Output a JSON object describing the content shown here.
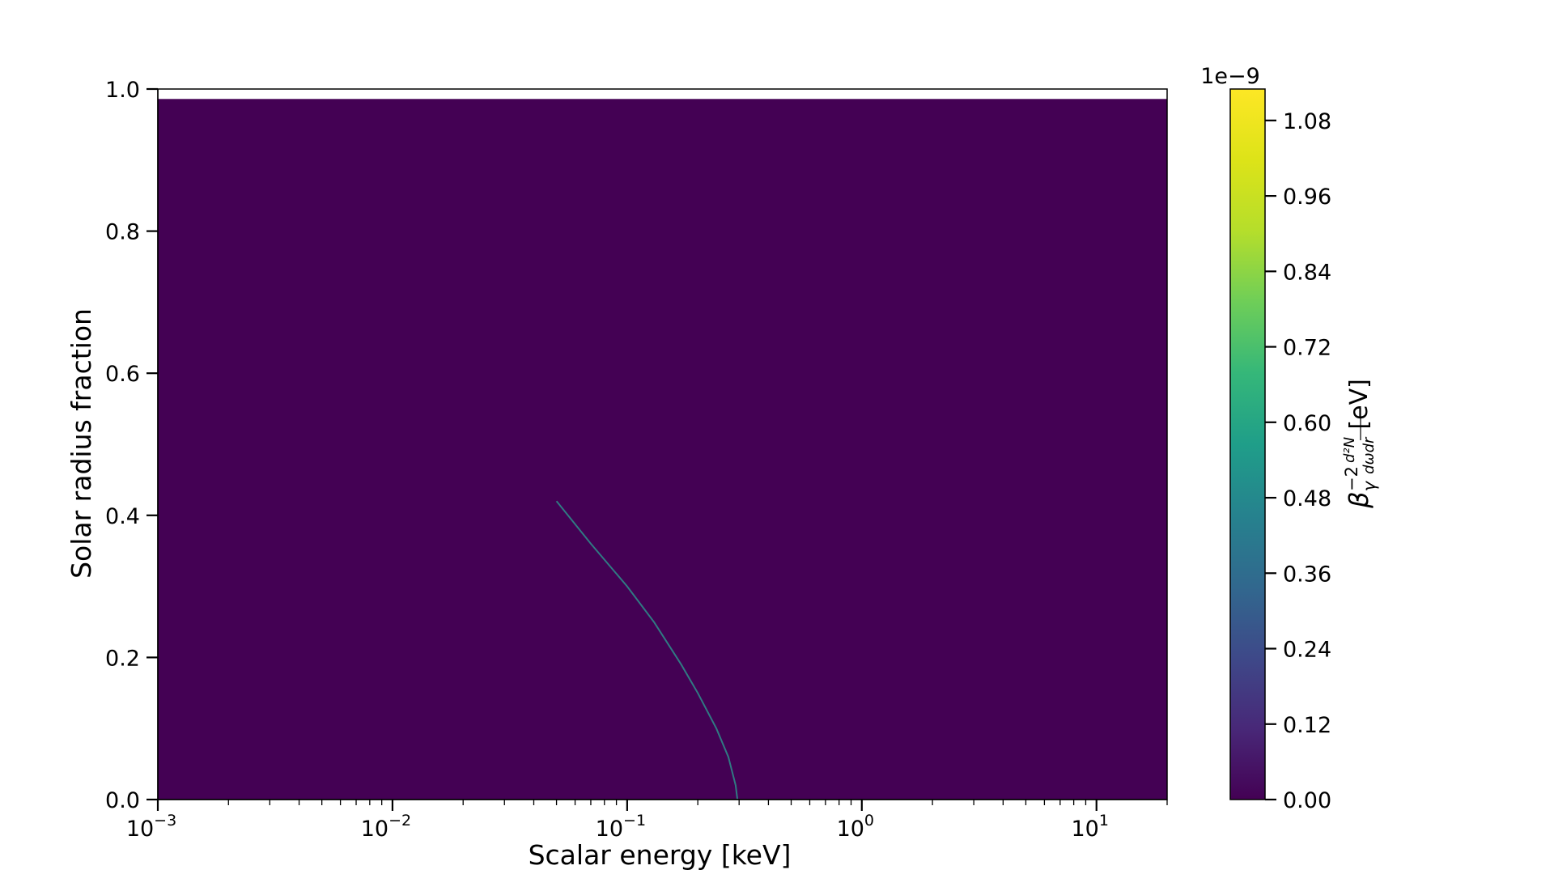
{
  "chart_data": {
    "type": "heatmap",
    "title": "",
    "xlabel": "Scalar energy [keV]",
    "ylabel": "Solar radius fraction",
    "x_scale": "log",
    "xlim": [
      0.001,
      20
    ],
    "ylim": [
      0.0,
      1.0
    ],
    "x_ticks": [
      {
        "value": 0.001,
        "label_base": "10",
        "label_exp": "−3"
      },
      {
        "value": 0.01,
        "label_base": "10",
        "label_exp": "−2"
      },
      {
        "value": 0.1,
        "label_base": "10",
        "label_exp": "−1"
      },
      {
        "value": 1,
        "label_base": "10",
        "label_exp": "0"
      },
      {
        "value": 10,
        "label_base": "10",
        "label_exp": "1"
      }
    ],
    "y_ticks": [
      {
        "value": 0.0,
        "label": "0.0"
      },
      {
        "value": 0.2,
        "label": "0.2"
      },
      {
        "value": 0.4,
        "label": "0.4"
      },
      {
        "value": 0.6,
        "label": "0.6"
      },
      {
        "value": 0.8,
        "label": "0.8"
      },
      {
        "value": 1.0,
        "label": "1.0"
      }
    ],
    "data_ymax": 0.986,
    "grid": false,
    "background_color": "#440154",
    "colormap": "viridis",
    "colorbar": {
      "label": "β_γ^{-2} d²N/dωdr [eV]",
      "label_symbol": "β",
      "label_sub": "γ",
      "label_sup": "−2",
      "label_frac_num": "d²N",
      "label_frac_den": "dωdr",
      "label_unit": "[eV]",
      "exponent": "1e−9",
      "min": 0.0,
      "max": 1.13,
      "ticks": [
        {
          "value": 0.0,
          "label": "0.00"
        },
        {
          "value": 0.12,
          "label": "0.12"
        },
        {
          "value": 0.24,
          "label": "0.24"
        },
        {
          "value": 0.36,
          "label": "0.36"
        },
        {
          "value": 0.48,
          "label": "0.48"
        },
        {
          "value": 0.6,
          "label": "0.60"
        },
        {
          "value": 0.72,
          "label": "0.72"
        },
        {
          "value": 0.84,
          "label": "0.84"
        },
        {
          "value": 0.96,
          "label": "0.96"
        },
        {
          "value": 1.08,
          "label": "1.08"
        }
      ]
    },
    "ridge": {
      "color": "#2d8f8b",
      "points": [
        {
          "x": 0.05,
          "y": 0.42
        },
        {
          "x": 0.07,
          "y": 0.36
        },
        {
          "x": 0.1,
          "y": 0.3
        },
        {
          "x": 0.13,
          "y": 0.25
        },
        {
          "x": 0.17,
          "y": 0.19
        },
        {
          "x": 0.2,
          "y": 0.15
        },
        {
          "x": 0.24,
          "y": 0.1
        },
        {
          "x": 0.27,
          "y": 0.06
        },
        {
          "x": 0.29,
          "y": 0.02
        },
        {
          "x": 0.295,
          "y": 0.0
        }
      ]
    }
  }
}
